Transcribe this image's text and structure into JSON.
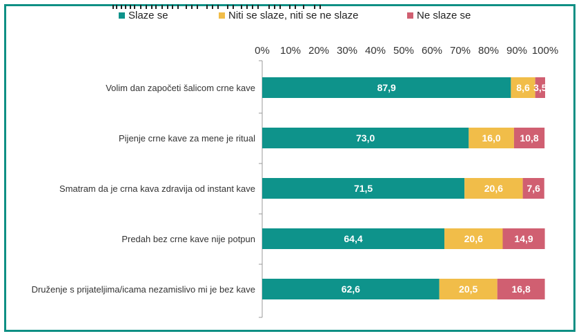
{
  "chart_data": {
    "type": "bar",
    "stacked": true,
    "orientation": "horizontal",
    "categories": [
      "Volim dan započeti šalicom crne kave",
      "Pijenje crne kave za mene je ritual",
      "Smatram da je crna kava zdravija od instant kave",
      "Predah bez crne kave nije potpun",
      "Druženje s prijateljima/icama nezamislivo mi je bez kave"
    ],
    "series": [
      {
        "name": "Slaze se",
        "color": "#0e938b",
        "values": [
          87.9,
          73.0,
          71.5,
          64.4,
          62.6
        ],
        "labels": [
          "87,9",
          "73,0",
          "71,5",
          "64,4",
          "62,6"
        ]
      },
      {
        "name": "Niti se slaze, niti se ne slaze",
        "color": "#f1bd49",
        "values": [
          8.6,
          16.0,
          20.6,
          20.6,
          20.5
        ],
        "labels": [
          "8,6",
          "16,0",
          "20,6",
          "20,6",
          "20,5"
        ]
      },
      {
        "name": "Ne slaze se",
        "color": "#d05f71",
        "values": [
          3.5,
          10.8,
          7.6,
          14.9,
          16.8
        ],
        "labels": [
          "3,5",
          "10,8",
          "7,6",
          "14,9",
          "16,8"
        ]
      }
    ],
    "xticks": [
      "0%",
      "10%",
      "20%",
      "30%",
      "40%",
      "50%",
      "60%",
      "70%",
      "80%",
      "90%",
      "100%"
    ],
    "xlim": [
      0,
      100
    ],
    "grid": false,
    "legend_position": "top"
  }
}
